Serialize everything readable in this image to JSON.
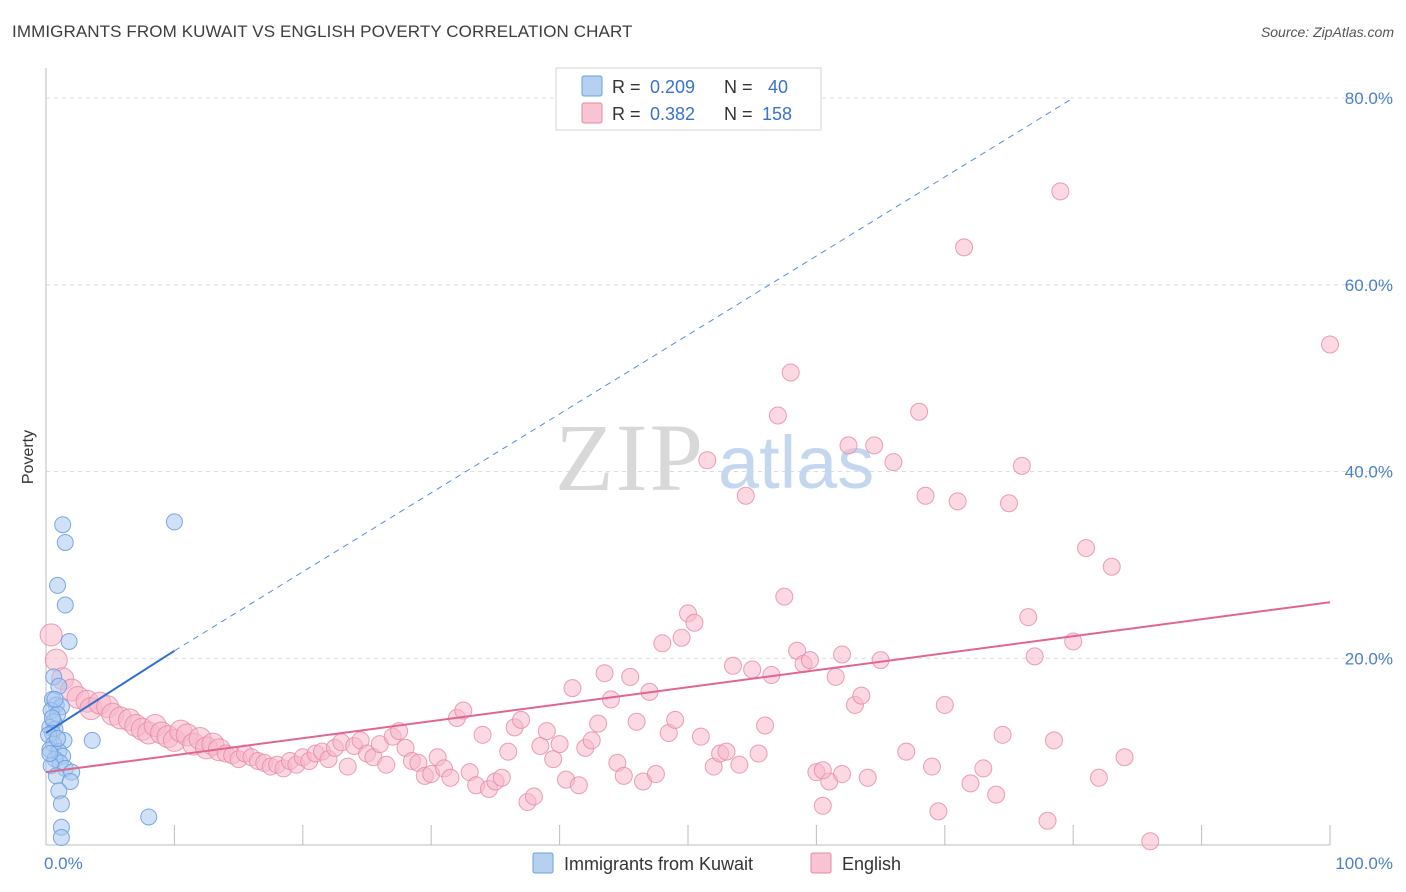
{
  "title": "IMMIGRANTS FROM KUWAIT VS ENGLISH POVERTY CORRELATION CHART",
  "source": "Source: ZipAtlas.com",
  "watermark": {
    "zip": "ZIP",
    "atlas": "atlas"
  },
  "legend_top": [
    {
      "r_label": "R =",
      "r_value": "0.209",
      "n_label": "N =",
      "n_value": "40",
      "color": "#a9c8f0",
      "stroke": "#6e9fdc"
    },
    {
      "r_label": "R =",
      "r_value": "0.382",
      "n_label": "N =",
      "n_value": "158",
      "color": "#f7b8cb",
      "stroke": "#e58aa6"
    }
  ],
  "legend_bottom": [
    {
      "label": "Immigrants from Kuwait",
      "color": "#a9c8f0",
      "stroke": "#6e9fdc"
    },
    {
      "label": "English",
      "color": "#f7b8cb",
      "stroke": "#e58aa6"
    }
  ],
  "chart_data": {
    "type": "scatter",
    "title": "IMMIGRANTS FROM KUWAIT VS ENGLISH POVERTY CORRELATION CHART",
    "xlabel": "",
    "ylabel": "Poverty",
    "xlim": [
      0,
      100
    ],
    "ylim": [
      0,
      80
    ],
    "x_tick_labels": [
      "0.0%",
      "100.0%"
    ],
    "y_ticks": [
      20,
      40,
      60,
      80
    ],
    "y_tick_labels": [
      "20.0%",
      "40.0%",
      "60.0%",
      "80.0%"
    ],
    "grid": true,
    "colors": {
      "kuwait": "#6e9fdc",
      "kuwait_fill": "#a9c8f0",
      "english": "#e58aa6",
      "english_fill": "#f7b8cb",
      "kuwait_line": "#2e6fcf",
      "english_line": "#e0668f"
    },
    "series": [
      {
        "name": "Immigrants from Kuwait",
        "r": 0.209,
        "n": 40,
        "trend": {
          "x0": 0,
          "y0": 12.0,
          "x1": 10,
          "y1": 20.8,
          "dash_to_x": 80,
          "dash_to_y": 80
        },
        "points": [
          [
            1.3,
            34.3
          ],
          [
            1.5,
            32.4
          ],
          [
            0.9,
            27.8
          ],
          [
            1.5,
            25.7
          ],
          [
            1.8,
            21.8
          ],
          [
            0.6,
            18.0
          ],
          [
            1.0,
            17.0
          ],
          [
            0.5,
            15.6
          ],
          [
            0.8,
            15.0
          ],
          [
            1.2,
            14.8
          ],
          [
            0.4,
            14.4
          ],
          [
            0.9,
            14.0
          ],
          [
            0.6,
            13.2
          ],
          [
            0.3,
            12.6
          ],
          [
            0.7,
            12.4
          ],
          [
            0.5,
            12.0
          ],
          [
            0.2,
            11.8
          ],
          [
            1.4,
            11.2
          ],
          [
            0.6,
            10.8
          ],
          [
            0.3,
            10.2
          ],
          [
            1.0,
            10.0
          ],
          [
            1.3,
            9.5
          ],
          [
            0.7,
            9.2
          ],
          [
            1.1,
            8.8
          ],
          [
            0.4,
            8.5
          ],
          [
            1.5,
            8.2
          ],
          [
            2.0,
            7.8
          ],
          [
            0.8,
            7.4
          ],
          [
            1.9,
            6.8
          ],
          [
            1.0,
            5.8
          ],
          [
            1.2,
            4.4
          ],
          [
            1.2,
            1.9
          ],
          [
            1.2,
            0.8
          ],
          [
            0.3,
            9.8
          ],
          [
            0.9,
            11.4
          ],
          [
            3.6,
            11.2
          ],
          [
            8.0,
            3.0
          ],
          [
            10.0,
            34.6
          ],
          [
            0.7,
            15.6
          ],
          [
            0.5,
            13.6
          ]
        ]
      },
      {
        "name": "English",
        "r": 0.382,
        "n": 158,
        "trend": {
          "x0": 0,
          "y0": 7.8,
          "x1": 100,
          "y1": 26.0
        },
        "points": [
          [
            0.4,
            22.5
          ],
          [
            0.8,
            19.8
          ],
          [
            1.3,
            17.8
          ],
          [
            2.0,
            16.6
          ],
          [
            2.5,
            15.8
          ],
          [
            3.2,
            15.4
          ],
          [
            3.5,
            14.6
          ],
          [
            4.2,
            15.2
          ],
          [
            4.8,
            14.8
          ],
          [
            5.2,
            14.0
          ],
          [
            5.8,
            13.6
          ],
          [
            6.5,
            13.4
          ],
          [
            7.0,
            12.8
          ],
          [
            7.5,
            12.4
          ],
          [
            8.0,
            12.0
          ],
          [
            8.5,
            12.8
          ],
          [
            9.0,
            12.0
          ],
          [
            9.5,
            11.6
          ],
          [
            10.0,
            11.2
          ],
          [
            10.5,
            12.2
          ],
          [
            11.0,
            11.8
          ],
          [
            11.5,
            10.8
          ],
          [
            12.0,
            11.4
          ],
          [
            12.5,
            10.4
          ],
          [
            13.0,
            10.8
          ],
          [
            13.5,
            10.2
          ],
          [
            14.0,
            9.8
          ],
          [
            14.5,
            9.6
          ],
          [
            15.0,
            9.2
          ],
          [
            15.5,
            9.8
          ],
          [
            16.0,
            9.4
          ],
          [
            16.5,
            9.0
          ],
          [
            17.0,
            8.8
          ],
          [
            17.5,
            8.4
          ],
          [
            18.0,
            8.6
          ],
          [
            18.5,
            8.2
          ],
          [
            19.0,
            9.0
          ],
          [
            19.5,
            8.6
          ],
          [
            20.0,
            9.4
          ],
          [
            20.5,
            9.0
          ],
          [
            21.0,
            9.8
          ],
          [
            21.5,
            10.0
          ],
          [
            22.0,
            9.2
          ],
          [
            22.5,
            10.4
          ],
          [
            23.0,
            11.0
          ],
          [
            23.5,
            8.4
          ],
          [
            24.0,
            10.6
          ],
          [
            24.5,
            11.2
          ],
          [
            25.0,
            9.8
          ],
          [
            25.5,
            9.4
          ],
          [
            26.0,
            10.8
          ],
          [
            26.5,
            8.6
          ],
          [
            27.0,
            11.6
          ],
          [
            27.5,
            12.2
          ],
          [
            28.0,
            10.4
          ],
          [
            28.5,
            9.0
          ],
          [
            29.0,
            8.8
          ],
          [
            29.5,
            7.4
          ],
          [
            30.0,
            7.6
          ],
          [
            30.5,
            9.4
          ],
          [
            31.0,
            8.2
          ],
          [
            31.5,
            7.2
          ],
          [
            32.0,
            13.6
          ],
          [
            32.5,
            14.4
          ],
          [
            33.0,
            7.8
          ],
          [
            33.5,
            6.4
          ],
          [
            34.0,
            11.8
          ],
          [
            34.5,
            6.0
          ],
          [
            35.0,
            6.8
          ],
          [
            35.5,
            7.2
          ],
          [
            36.0,
            10.0
          ],
          [
            36.5,
            12.6
          ],
          [
            37.0,
            13.4
          ],
          [
            37.5,
            4.6
          ],
          [
            38.0,
            5.2
          ],
          [
            38.5,
            10.6
          ],
          [
            39.0,
            12.2
          ],
          [
            39.5,
            9.2
          ],
          [
            40.0,
            10.8
          ],
          [
            40.5,
            7.0
          ],
          [
            41.0,
            16.8
          ],
          [
            41.5,
            6.4
          ],
          [
            42.0,
            10.4
          ],
          [
            42.5,
            11.2
          ],
          [
            43.0,
            13.0
          ],
          [
            43.5,
            18.4
          ],
          [
            44.0,
            15.6
          ],
          [
            44.5,
            8.8
          ],
          [
            45.0,
            7.4
          ],
          [
            45.5,
            18.0
          ],
          [
            46.0,
            13.2
          ],
          [
            46.5,
            6.8
          ],
          [
            47.0,
            16.4
          ],
          [
            47.5,
            7.6
          ],
          [
            48.0,
            21.6
          ],
          [
            48.5,
            12.0
          ],
          [
            49.0,
            13.4
          ],
          [
            49.5,
            22.2
          ],
          [
            50.0,
            24.8
          ],
          [
            50.5,
            23.8
          ],
          [
            51.0,
            11.6
          ],
          [
            51.5,
            41.2
          ],
          [
            52.0,
            8.4
          ],
          [
            52.5,
            9.8
          ],
          [
            53.0,
            10.0
          ],
          [
            53.5,
            19.2
          ],
          [
            54.0,
            8.6
          ],
          [
            54.5,
            37.4
          ],
          [
            55.0,
            18.8
          ],
          [
            55.5,
            9.8
          ],
          [
            56.0,
            12.8
          ],
          [
            56.5,
            18.2
          ],
          [
            57.0,
            46.0
          ],
          [
            57.5,
            26.6
          ],
          [
            58.0,
            50.6
          ],
          [
            58.5,
            20.8
          ],
          [
            59.0,
            19.4
          ],
          [
            59.5,
            19.8
          ],
          [
            60.0,
            7.8
          ],
          [
            60.5,
            4.2
          ],
          [
            61.0,
            6.8
          ],
          [
            61.5,
            18.0
          ],
          [
            62.0,
            7.6
          ],
          [
            62.5,
            42.8
          ],
          [
            63.0,
            15.0
          ],
          [
            63.5,
            16.0
          ],
          [
            64.0,
            7.2
          ],
          [
            64.5,
            42.8
          ],
          [
            65.0,
            19.8
          ],
          [
            66.0,
            41.0
          ],
          [
            67.0,
            10.0
          ],
          [
            68.0,
            46.4
          ],
          [
            68.5,
            37.4
          ],
          [
            69.0,
            8.4
          ],
          [
            69.5,
            3.6
          ],
          [
            70.0,
            15.0
          ],
          [
            71.0,
            36.8
          ],
          [
            71.5,
            64.0
          ],
          [
            72.0,
            6.6
          ],
          [
            73.0,
            8.2
          ],
          [
            74.0,
            5.4
          ],
          [
            74.5,
            11.8
          ],
          [
            75.0,
            36.6
          ],
          [
            76.0,
            40.6
          ],
          [
            76.5,
            24.4
          ],
          [
            77.0,
            20.2
          ],
          [
            78.0,
            2.6
          ],
          [
            78.5,
            11.2
          ],
          [
            79.0,
            70.0
          ],
          [
            80.0,
            21.8
          ],
          [
            81.0,
            31.8
          ],
          [
            82.0,
            7.2
          ],
          [
            83.0,
            29.8
          ],
          [
            84.0,
            9.4
          ],
          [
            86.0,
            0.4
          ],
          [
            100.0,
            53.6
          ],
          [
            62.0,
            20.4
          ],
          [
            60.5,
            8.0
          ]
        ]
      }
    ]
  }
}
